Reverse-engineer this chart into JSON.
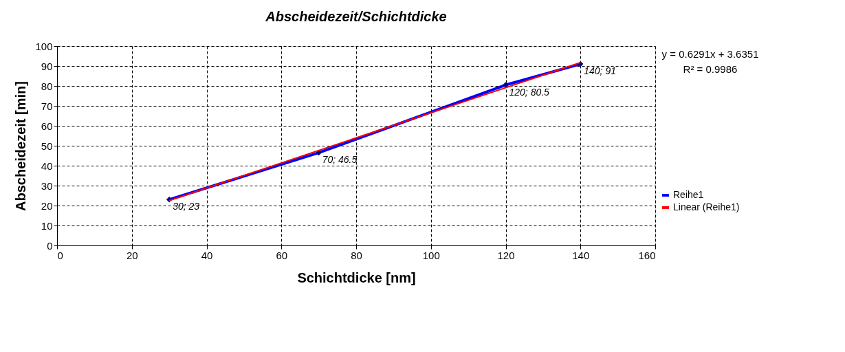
{
  "chart_data": {
    "type": "line",
    "title": "Abscheidezeit/Schichtdicke",
    "xlabel": "Schichtdicke [nm]",
    "ylabel": "Abscheidezeit [min]",
    "xlim": [
      0,
      160
    ],
    "xticks": [
      0,
      20,
      40,
      60,
      80,
      100,
      120,
      140,
      160
    ],
    "ylim": [
      0,
      100
    ],
    "yticks": [
      0,
      10,
      20,
      30,
      40,
      50,
      60,
      70,
      80,
      90,
      100
    ],
    "grid": true,
    "legend": "right",
    "series": [
      {
        "name": "Reihe1",
        "color": "#0000ff",
        "x": [
          30,
          70,
          120,
          140
        ],
        "values": [
          23,
          46.5,
          80.5,
          91
        ],
        "marker": "diamond",
        "line_style": "solid",
        "value_labels": [
          "30; 23",
          "70; 46.5",
          "120; 80.5",
          "140; 91"
        ]
      },
      {
        "name": "Linear (Reihe1)",
        "color": "#ff0000",
        "type": "line",
        "x": [
          30,
          140
        ],
        "values": [
          22.5,
          91.7
        ],
        "marker": "none",
        "line_style": "solid"
      }
    ],
    "annotations": [
      "y = 0.6291x + 3.6351",
      "R² = 0.9986"
    ]
  }
}
